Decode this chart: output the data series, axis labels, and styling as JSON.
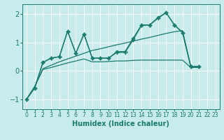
{
  "xlabel": "Humidex (Indice chaleur)",
  "ylabel": "",
  "bg_color": "#c8ecec",
  "grid_color": "#ffffff",
  "line_color": "#1a7a6e",
  "xlim": [
    -0.5,
    23.5
  ],
  "ylim": [
    -1.35,
    2.35
  ],
  "yticks": [
    -1,
    0,
    1,
    2
  ],
  "xticks": [
    0,
    1,
    2,
    3,
    4,
    5,
    6,
    7,
    8,
    9,
    10,
    11,
    12,
    13,
    14,
    15,
    16,
    17,
    18,
    19,
    20,
    21,
    22,
    23
  ],
  "series": [
    {
      "x": [
        0,
        1,
        2,
        3,
        4,
        5,
        6,
        7,
        8,
        9,
        10,
        11,
        12,
        13,
        14,
        15,
        16,
        17,
        18,
        19,
        20,
        21
      ],
      "y": [
        -1.0,
        -0.6,
        0.3,
        0.45,
        0.5,
        1.4,
        0.62,
        1.3,
        0.45,
        0.45,
        0.45,
        0.68,
        0.68,
        1.15,
        1.62,
        1.62,
        1.88,
        2.05,
        1.62,
        1.35,
        0.15,
        0.15
      ],
      "marker": "D",
      "markersize": 2.5,
      "linewidth": 1.0
    },
    {
      "x": [
        0,
        1,
        2,
        3,
        4,
        5,
        6,
        7,
        8,
        9,
        10,
        11,
        12,
        13,
        14,
        15,
        16,
        17,
        18,
        19,
        20,
        21
      ],
      "y": [
        -1.0,
        -0.6,
        0.3,
        0.45,
        0.5,
        1.4,
        0.62,
        1.3,
        0.45,
        0.45,
        0.45,
        0.65,
        0.65,
        1.1,
        1.6,
        1.62,
        1.85,
        2.05,
        1.62,
        1.35,
        0.15,
        0.15
      ],
      "marker": "+",
      "markersize": 5,
      "linewidth": 0.9
    },
    {
      "x": [
        0,
        1,
        2,
        3,
        4,
        5,
        6,
        7,
        8,
        9,
        10,
        11,
        12,
        13,
        14,
        15,
        16,
        17,
        18,
        19,
        20,
        21
      ],
      "y": [
        -1.0,
        -0.55,
        0.08,
        0.2,
        0.32,
        0.42,
        0.52,
        0.62,
        0.72,
        0.78,
        0.85,
        0.92,
        0.98,
        1.05,
        1.12,
        1.18,
        1.25,
        1.32,
        1.38,
        1.42,
        0.15,
        0.15
      ],
      "marker": null,
      "markersize": 0,
      "linewidth": 0.9
    },
    {
      "x": [
        0,
        1,
        2,
        3,
        4,
        5,
        6,
        7,
        8,
        9,
        10,
        11,
        12,
        13,
        14,
        15,
        16,
        17,
        18,
        19,
        20,
        21
      ],
      "y": [
        -1.0,
        -0.55,
        0.05,
        0.12,
        0.2,
        0.28,
        0.35,
        0.42,
        0.32,
        0.32,
        0.33,
        0.35,
        0.35,
        0.37,
        0.38,
        0.38,
        0.38,
        0.38,
        0.38,
        0.38,
        0.12,
        0.12
      ],
      "marker": null,
      "markersize": 0,
      "linewidth": 0.9
    }
  ]
}
